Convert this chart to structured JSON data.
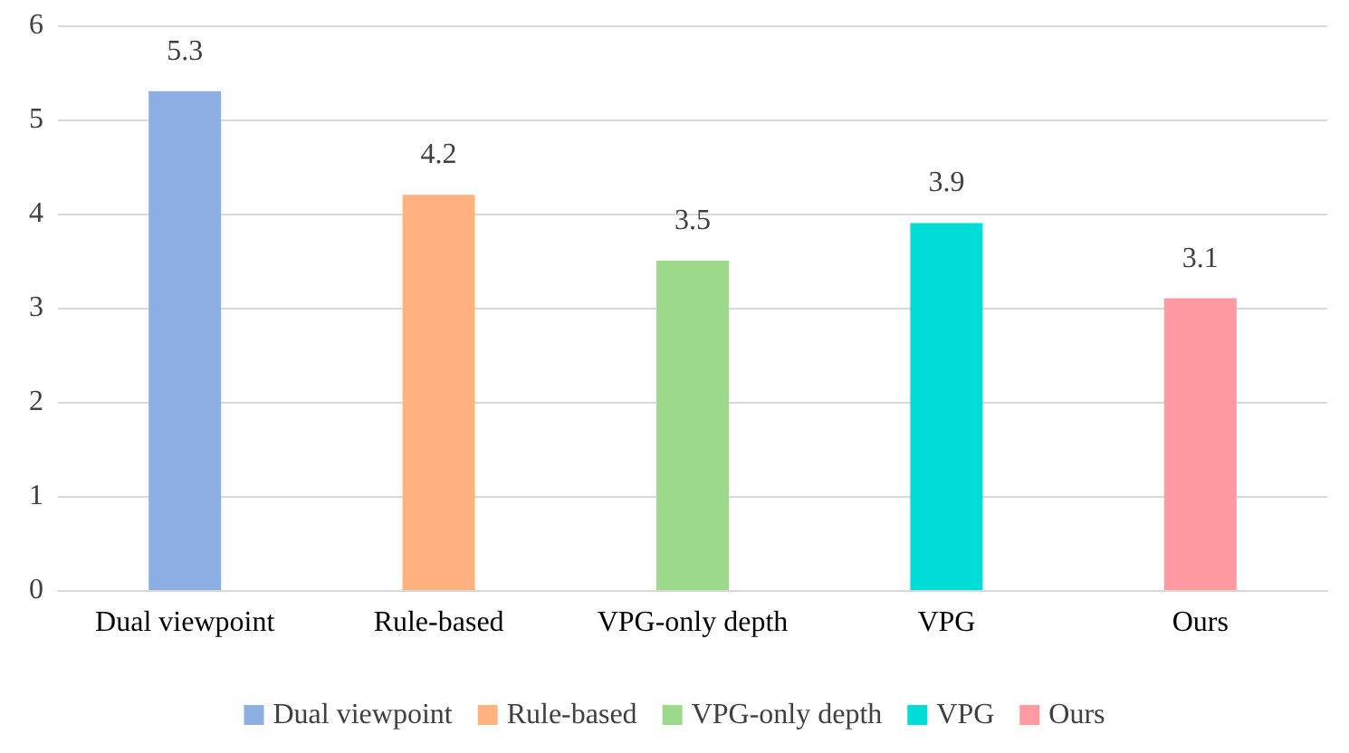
{
  "chart_data": {
    "type": "bar",
    "categories": [
      "Dual viewpoint",
      "Rule-based",
      "VPG-only depth",
      "VPG",
      "Ours"
    ],
    "series": [
      {
        "name": "Dual viewpoint",
        "color": "#8caee2",
        "values": [
          5.3,
          null,
          null,
          null,
          null
        ]
      },
      {
        "name": "Rule-based",
        "color": "#ffb27e",
        "values": [
          null,
          4.2,
          null,
          null,
          null
        ]
      },
      {
        "name": "VPG-only depth",
        "color": "#9cd98a",
        "values": [
          null,
          null,
          3.5,
          null,
          null
        ]
      },
      {
        "name": "VPG",
        "color": "#00dcd6",
        "values": [
          null,
          null,
          null,
          3.9,
          null
        ]
      },
      {
        "name": "Ours",
        "color": "#ff9aa2",
        "values": [
          null,
          null,
          null,
          null,
          3.1
        ]
      }
    ],
    "ylim": [
      0,
      6
    ],
    "yticks": [
      0,
      1,
      2,
      3,
      4,
      5,
      6
    ],
    "grid": "y",
    "data_labels": true,
    "legend": "bottom"
  }
}
